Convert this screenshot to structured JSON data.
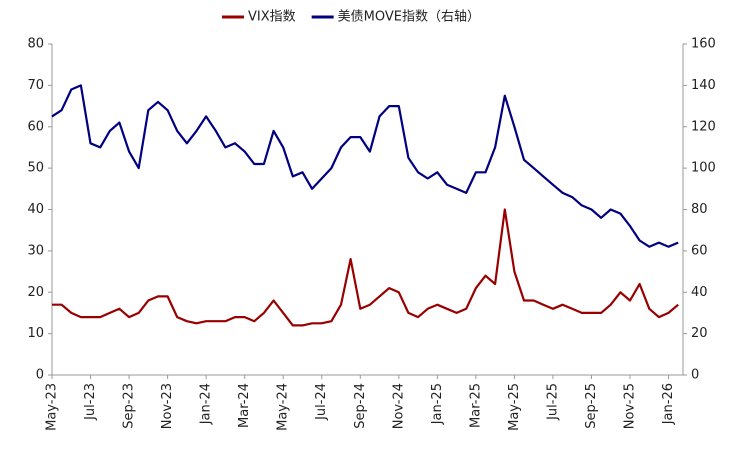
{
  "chart_data": {
    "type": "line",
    "categories": [
      "May-23",
      null,
      null,
      null,
      "Jul-23",
      null,
      null,
      null,
      "Sep-23",
      null,
      null,
      null,
      "Nov-23",
      null,
      null,
      null,
      "Jan-24",
      null,
      null,
      null,
      "Mar-24",
      null,
      null,
      null,
      "May-24",
      null,
      null,
      null,
      "Jul-24",
      null,
      null,
      null,
      "Sep-24",
      null,
      null,
      null,
      "Nov-24",
      null,
      null,
      null,
      "Jan-25",
      null,
      null,
      null,
      "Mar-25",
      null,
      null,
      null,
      "May-25",
      null,
      null,
      null,
      "Jul-25",
      null,
      null,
      null,
      "Sep-25",
      null,
      null,
      null,
      "Nov-25",
      null,
      null,
      null,
      "Jan-26",
      null
    ],
    "series": [
      {
        "name": "VIX指数",
        "color": "#990000",
        "values": [
          17,
          17,
          15,
          14,
          14,
          14,
          15,
          16,
          14,
          15,
          18,
          19,
          19,
          14,
          13,
          12.5,
          13,
          13,
          13,
          14,
          14,
          13,
          15,
          18,
          15,
          12,
          12,
          12.5,
          12.5,
          13,
          17,
          28,
          16,
          17,
          19,
          21,
          20,
          15,
          14,
          16,
          17,
          16,
          15,
          16,
          21,
          24,
          22,
          40,
          25,
          18,
          18,
          17,
          16,
          17,
          16,
          15,
          15,
          15,
          17,
          20,
          18,
          22,
          16,
          14,
          15,
          17
        ]
      },
      {
        "name": "美债MOVE指数（右轴）",
        "color": "#000080",
        "axis": "y2",
        "values": [
          125,
          128,
          138,
          140,
          112,
          110,
          118,
          122,
          108,
          100,
          128,
          132,
          128,
          118,
          112,
          118,
          125,
          118,
          110,
          112,
          108,
          102,
          102,
          118,
          110,
          96,
          98,
          90,
          95,
          100,
          110,
          115,
          115,
          108,
          125,
          130,
          130,
          105,
          98,
          95,
          98,
          92,
          90,
          88,
          98,
          98,
          110,
          135,
          120,
          104,
          100,
          96,
          92,
          88,
          86,
          82,
          80,
          76,
          80,
          78,
          72,
          65,
          62,
          64,
          62,
          64
        ]
      }
    ],
    "ylim": [
      0,
      80
    ],
    "yticks": [
      0,
      10,
      20,
      30,
      40,
      50,
      60,
      70,
      80
    ],
    "y2lim": [
      0,
      160
    ],
    "y2ticks": [
      0,
      20,
      40,
      60,
      80,
      100,
      120,
      140,
      160
    ],
    "legend": "top"
  }
}
